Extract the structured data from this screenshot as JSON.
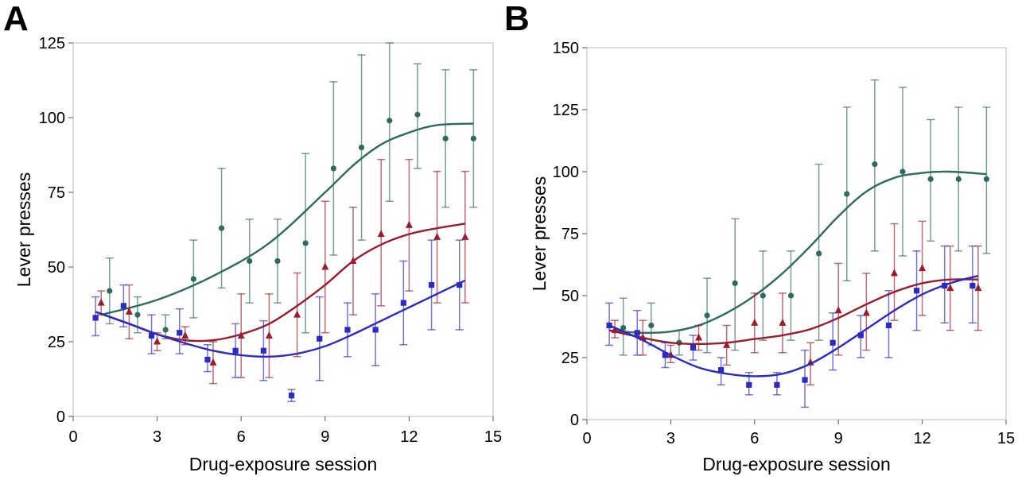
{
  "chart_data": [
    {
      "panel": "A",
      "type": "scatter",
      "xlabel": "Drug-exposure session",
      "ylabel": "Lever presses",
      "xlim": [
        0,
        15
      ],
      "ylim": [
        0,
        125
      ],
      "xticks": [
        0,
        3,
        6,
        9,
        12,
        15
      ],
      "yticks": [
        0,
        25,
        50,
        75,
        100,
        125
      ],
      "grid": false,
      "legend": "none",
      "series": [
        {
          "color": "#2e6b5e",
          "marker": "circle",
          "points": [
            {
              "x": 1.3,
              "y": 42,
              "lo": 31,
              "hi": 53
            },
            {
              "x": 2.3,
              "y": 34,
              "lo": 28,
              "hi": 40
            },
            {
              "x": 3.3,
              "y": 29,
              "lo": 26,
              "hi": 34
            },
            {
              "x": 4.3,
              "y": 46,
              "lo": 33,
              "hi": 59
            },
            {
              "x": 5.3,
              "y": 63,
              "lo": 43,
              "hi": 83
            },
            {
              "x": 6.3,
              "y": 52,
              "lo": 38,
              "hi": 66
            },
            {
              "x": 7.3,
              "y": 52,
              "lo": 38,
              "hi": 66
            },
            {
              "x": 8.3,
              "y": 58,
              "lo": 28,
              "hi": 88
            },
            {
              "x": 9.3,
              "y": 83,
              "lo": 54,
              "hi": 112
            },
            {
              "x": 10.3,
              "y": 90,
              "lo": 59,
              "hi": 121
            },
            {
              "x": 11.3,
              "y": 99,
              "lo": 72,
              "hi": 125
            },
            {
              "x": 12.3,
              "y": 101,
              "lo": 83,
              "hi": 118
            },
            {
              "x": 13.3,
              "y": 93,
              "lo": 70,
              "hi": 116
            },
            {
              "x": 14.3,
              "y": 93,
              "lo": 70,
              "hi": 116
            }
          ],
          "curve": [
            [
              1.0,
              34
            ],
            [
              3,
              39
            ],
            [
              5,
              47
            ],
            [
              7,
              58
            ],
            [
              9,
              75
            ],
            [
              10,
              84
            ],
            [
              11,
              91
            ],
            [
              12,
              95
            ],
            [
              13,
              97.5
            ],
            [
              14.3,
              98
            ]
          ]
        },
        {
          "color": "#9b1c2c",
          "marker": "triangle",
          "points": [
            {
              "x": 1.0,
              "y": 38,
              "lo": 34,
              "hi": 42
            },
            {
              "x": 2.0,
              "y": 35,
              "lo": 26,
              "hi": 44
            },
            {
              "x": 3.0,
              "y": 25,
              "lo": 22,
              "hi": 28
            },
            {
              "x": 4.0,
              "y": 27,
              "lo": 24,
              "hi": 30
            },
            {
              "x": 5.0,
              "y": 18,
              "lo": 11,
              "hi": 25
            },
            {
              "x": 6.0,
              "y": 27,
              "lo": 13,
              "hi": 41
            },
            {
              "x": 7.0,
              "y": 27,
              "lo": 13,
              "hi": 41
            },
            {
              "x": 8.0,
              "y": 34,
              "lo": 20,
              "hi": 48
            },
            {
              "x": 9.0,
              "y": 50,
              "lo": 28,
              "hi": 72
            },
            {
              "x": 10.0,
              "y": 52,
              "lo": 34,
              "hi": 70
            },
            {
              "x": 11.0,
              "y": 61,
              "lo": 37,
              "hi": 86
            },
            {
              "x": 12.0,
              "y": 64,
              "lo": 42,
              "hi": 86
            },
            {
              "x": 13.0,
              "y": 60,
              "lo": 38,
              "hi": 82
            },
            {
              "x": 14.0,
              "y": 60,
              "lo": 38,
              "hi": 82
            }
          ],
          "curve": [
            [
              0.8,
              35
            ],
            [
              2,
              31
            ],
            [
              3,
              27.5
            ],
            [
              4,
              25.5
            ],
            [
              5,
              25.5
            ],
            [
              6,
              27.5
            ],
            [
              7,
              31
            ],
            [
              8,
              37
            ],
            [
              9,
              44
            ],
            [
              10,
              52
            ],
            [
              11,
              57.5
            ],
            [
              12,
              61
            ],
            [
              13,
              63
            ],
            [
              14,
              64.5
            ]
          ]
        },
        {
          "color": "#2b2bc4",
          "marker": "square",
          "points": [
            {
              "x": 0.8,
              "y": 33,
              "lo": 27,
              "hi": 40
            },
            {
              "x": 1.8,
              "y": 37,
              "lo": 30,
              "hi": 44
            },
            {
              "x": 2.8,
              "y": 27,
              "lo": 21,
              "hi": 34
            },
            {
              "x": 3.8,
              "y": 28,
              "lo": 21,
              "hi": 36
            },
            {
              "x": 4.8,
              "y": 19,
              "lo": 15,
              "hi": 24
            },
            {
              "x": 5.8,
              "y": 22,
              "lo": 13,
              "hi": 31
            },
            {
              "x": 6.8,
              "y": 22,
              "lo": 12,
              "hi": 32
            },
            {
              "x": 7.8,
              "y": 7,
              "lo": 5,
              "hi": 9
            },
            {
              "x": 8.8,
              "y": 26,
              "lo": 12,
              "hi": 40
            },
            {
              "x": 9.8,
              "y": 29,
              "lo": 20,
              "hi": 38
            },
            {
              "x": 10.8,
              "y": 29,
              "lo": 17,
              "hi": 41
            },
            {
              "x": 11.8,
              "y": 38,
              "lo": 24,
              "hi": 52
            },
            {
              "x": 12.8,
              "y": 44,
              "lo": 29,
              "hi": 59
            },
            {
              "x": 13.8,
              "y": 44,
              "lo": 29,
              "hi": 59
            }
          ],
          "curve": [
            [
              0.8,
              35
            ],
            [
              2,
              31
            ],
            [
              3,
              27.5
            ],
            [
              4,
              24.5
            ],
            [
              5,
              22
            ],
            [
              6,
              20.5
            ],
            [
              7,
              20
            ],
            [
              8,
              21
            ],
            [
              9,
              23.5
            ],
            [
              10,
              27.5
            ],
            [
              11,
              32
            ],
            [
              12,
              36.5
            ],
            [
              13,
              41
            ],
            [
              14,
              45.5
            ]
          ]
        }
      ]
    },
    {
      "panel": "B",
      "type": "scatter",
      "xlabel": "Drug-exposure session",
      "ylabel": "Lever presses",
      "xlim": [
        0,
        15
      ],
      "ylim": [
        0,
        150
      ],
      "xticks": [
        0,
        3,
        6,
        9,
        12,
        15
      ],
      "yticks": [
        0,
        25,
        50,
        75,
        100,
        125,
        150
      ],
      "grid": false,
      "legend": "none",
      "series": [
        {
          "color": "#2e6b5e",
          "marker": "circle",
          "points": [
            {
              "x": 1.3,
              "y": 37,
              "lo": 26,
              "hi": 49
            },
            {
              "x": 2.3,
              "y": 38,
              "lo": 30,
              "hi": 47
            },
            {
              "x": 3.3,
              "y": 31,
              "lo": 26,
              "hi": 36
            },
            {
              "x": 4.3,
              "y": 42,
              "lo": 27,
              "hi": 57
            },
            {
              "x": 5.3,
              "y": 55,
              "lo": 28,
              "hi": 81
            },
            {
              "x": 6.3,
              "y": 50,
              "lo": 32,
              "hi": 68
            },
            {
              "x": 7.3,
              "y": 50,
              "lo": 32,
              "hi": 68
            },
            {
              "x": 8.3,
              "y": 67,
              "lo": 32,
              "hi": 103
            },
            {
              "x": 9.3,
              "y": 91,
              "lo": 56,
              "hi": 126
            },
            {
              "x": 10.3,
              "y": 103,
              "lo": 68,
              "hi": 137
            },
            {
              "x": 11.3,
              "y": 100,
              "lo": 66,
              "hi": 134
            },
            {
              "x": 12.3,
              "y": 97,
              "lo": 72,
              "hi": 121
            },
            {
              "x": 13.3,
              "y": 97,
              "lo": 68,
              "hi": 126
            },
            {
              "x": 14.3,
              "y": 97,
              "lo": 67,
              "hi": 126
            }
          ],
          "curve": [
            [
              0.8,
              36
            ],
            [
              2,
              35
            ],
            [
              3,
              35.5
            ],
            [
              4,
              38
            ],
            [
              5,
              43
            ],
            [
              6,
              50
            ],
            [
              7,
              59
            ],
            [
              8,
              70
            ],
            [
              9,
              82
            ],
            [
              10,
              92
            ],
            [
              11,
              97.5
            ],
            [
              12,
              99.5
            ],
            [
              13,
              100
            ],
            [
              14.3,
              99
            ]
          ]
        },
        {
          "color": "#9b1c2c",
          "marker": "triangle",
          "points": [
            {
              "x": 1.0,
              "y": 36,
              "lo": 33,
              "hi": 40
            },
            {
              "x": 2.0,
              "y": 33,
              "lo": 26,
              "hi": 40
            },
            {
              "x": 3.0,
              "y": 26,
              "lo": 23,
              "hi": 30
            },
            {
              "x": 4.0,
              "y": 33,
              "lo": 28,
              "hi": 38
            },
            {
              "x": 5.0,
              "y": 30,
              "lo": 22,
              "hi": 38
            },
            {
              "x": 6.0,
              "y": 39,
              "lo": 27,
              "hi": 51
            },
            {
              "x": 7.0,
              "y": 39,
              "lo": 27,
              "hi": 51
            },
            {
              "x": 8.0,
              "y": 23,
              "lo": 14,
              "hi": 31
            },
            {
              "x": 9.0,
              "y": 44,
              "lo": 26,
              "hi": 63
            },
            {
              "x": 10.0,
              "y": 43,
              "lo": 28,
              "hi": 59
            },
            {
              "x": 11.0,
              "y": 59,
              "lo": 40,
              "hi": 79
            },
            {
              "x": 12.0,
              "y": 61,
              "lo": 42,
              "hi": 80
            },
            {
              "x": 13.0,
              "y": 53,
              "lo": 36,
              "hi": 70
            },
            {
              "x": 14.0,
              "y": 53,
              "lo": 36,
              "hi": 70
            }
          ],
          "curve": [
            [
              0.8,
              36
            ],
            [
              2,
              33
            ],
            [
              3,
              31
            ],
            [
              4,
              30.5
            ],
            [
              5,
              31
            ],
            [
              6,
              32.5
            ],
            [
              7,
              34
            ],
            [
              8,
              36.5
            ],
            [
              9,
              41
            ],
            [
              10,
              46.5
            ],
            [
              11,
              51.5
            ],
            [
              12,
              55
            ],
            [
              13,
              56.5
            ],
            [
              14,
              56.5
            ]
          ]
        },
        {
          "color": "#2b2bc4",
          "marker": "square",
          "points": [
            {
              "x": 0.8,
              "y": 38,
              "lo": 30,
              "hi": 47
            },
            {
              "x": 1.8,
              "y": 35,
              "lo": 26,
              "hi": 44
            },
            {
              "x": 2.8,
              "y": 26,
              "lo": 21,
              "hi": 31
            },
            {
              "x": 3.8,
              "y": 29,
              "lo": 24,
              "hi": 34
            },
            {
              "x": 4.8,
              "y": 20,
              "lo": 14,
              "hi": 25
            },
            {
              "x": 5.8,
              "y": 14,
              "lo": 10,
              "hi": 19
            },
            {
              "x": 6.8,
              "y": 14,
              "lo": 10,
              "hi": 19
            },
            {
              "x": 7.8,
              "y": 16,
              "lo": 5,
              "hi": 28
            },
            {
              "x": 8.8,
              "y": 31,
              "lo": 20,
              "hi": 43
            },
            {
              "x": 9.8,
              "y": 34,
              "lo": 25,
              "hi": 42
            },
            {
              "x": 10.8,
              "y": 38,
              "lo": 25,
              "hi": 52
            },
            {
              "x": 11.8,
              "y": 52,
              "lo": 36,
              "hi": 68
            },
            {
              "x": 12.8,
              "y": 54,
              "lo": 39,
              "hi": 70
            },
            {
              "x": 13.8,
              "y": 54,
              "lo": 39,
              "hi": 70
            }
          ],
          "curve": [
            [
              0.8,
              38
            ],
            [
              2,
              32
            ],
            [
              3,
              26
            ],
            [
              4,
              21
            ],
            [
              5,
              18.5
            ],
            [
              6,
              17.5
            ],
            [
              7,
              18.5
            ],
            [
              8,
              22.5
            ],
            [
              9,
              29
            ],
            [
              10,
              36.5
            ],
            [
              11,
              44
            ],
            [
              12,
              50.5
            ],
            [
              13,
              55
            ],
            [
              14,
              58
            ]
          ]
        }
      ]
    }
  ]
}
